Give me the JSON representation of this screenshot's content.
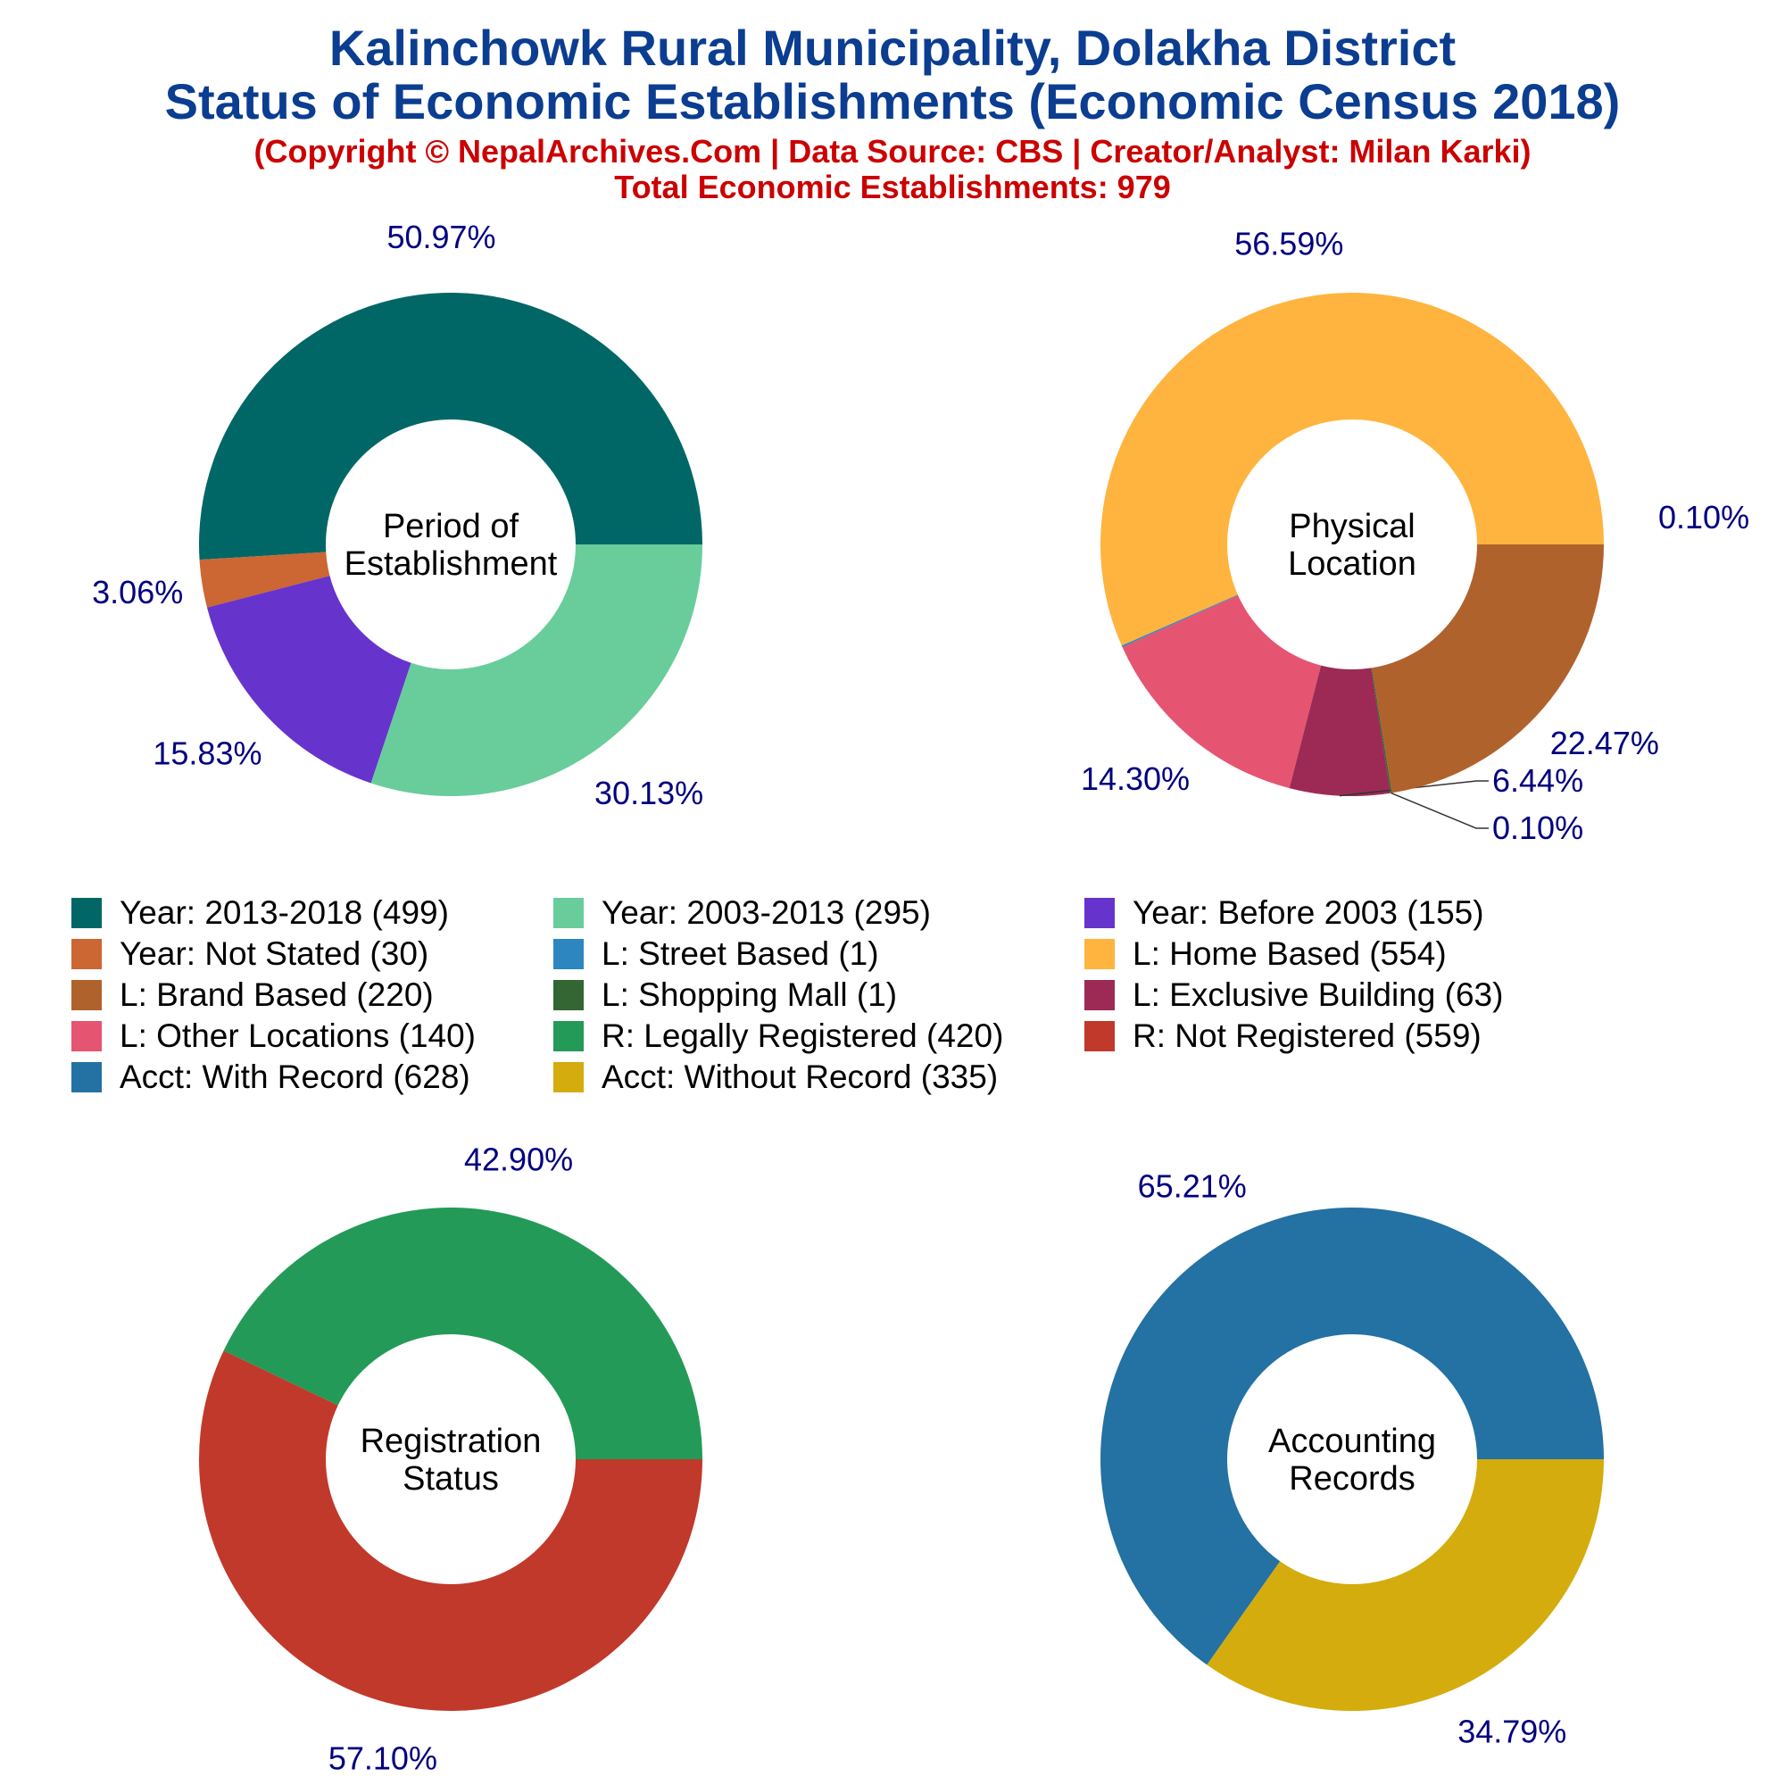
{
  "header": {
    "title_line1": "Kalinchowk Rural Municipality, Dolakha District",
    "title_line2": "Status of Economic Establishments (Economic Census 2018)",
    "copyright": "(Copyright © NepalArchives.Com | Data Source: CBS | Creator/Analyst: Milan Karki)",
    "total": "Total Economic Establishments: 979"
  },
  "legend": [
    {
      "label": "Year: 2013-2018 (499)",
      "color": "#016766"
    },
    {
      "label": "Year: 2003-2013 (295)",
      "color": "#68cd9a"
    },
    {
      "label": "Year: Before 2003 (155)",
      "color": "#6733cd"
    },
    {
      "label": "Year: Not Stated (30)",
      "color": "#cc6633"
    },
    {
      "label": "L: Street Based (1)",
      "color": "#2e86c1"
    },
    {
      "label": "L: Home Based (554)",
      "color": "#ffb43f"
    },
    {
      "label": "L: Brand Based (220)",
      "color": "#b0622d"
    },
    {
      "label": "L: Shopping Mall (1)",
      "color": "#336633"
    },
    {
      "label": "L: Exclusive Building (63)",
      "color": "#9c2a55"
    },
    {
      "label": "L: Other Locations (140)",
      "color": "#e55571"
    },
    {
      "label": "R: Legally Registered (420)",
      "color": "#239a58"
    },
    {
      "label": "R: Not Registered (559)",
      "color": "#c0392b"
    },
    {
      "label": "Acct: With Record (628)",
      "color": "#2471a3"
    },
    {
      "label": "Acct: Without Record (335)",
      "color": "#d4ac0d"
    }
  ],
  "chart_data": [
    {
      "type": "pie",
      "center_label": [
        "Period of",
        "Establishment"
      ],
      "slices": [
        {
          "label": "Year: 2013-2018",
          "value": 499,
          "pct_text": "50.97%",
          "color": "#016766"
        },
        {
          "label": "Year: Not Stated",
          "value": 30,
          "pct_text": "3.06%",
          "color": "#cc6633"
        },
        {
          "label": "Year: Before 2003",
          "value": 155,
          "pct_text": "15.83%",
          "color": "#6733cd"
        },
        {
          "label": "Year: 2003-2013",
          "value": 295,
          "pct_text": "30.13%",
          "color": "#68cd9a"
        }
      ]
    },
    {
      "type": "pie",
      "center_label": [
        "Physical",
        "Location"
      ],
      "slices": [
        {
          "label": "L: Home Based",
          "value": 554,
          "pct_text": "56.59%",
          "color": "#ffb43f"
        },
        {
          "label": "L: Street Based",
          "value": 1,
          "pct_text": "0.10%",
          "color": "#2e86c1"
        },
        {
          "label": "L: Other Locations",
          "value": 140,
          "pct_text": "14.30%",
          "color": "#e55571"
        },
        {
          "label": "L: Exclusive Building",
          "value": 63,
          "pct_text": "6.44%",
          "color": "#9c2a55"
        },
        {
          "label": "L: Shopping Mall",
          "value": 1,
          "pct_text": "0.10%",
          "color": "#336633"
        },
        {
          "label": "L: Brand Based",
          "value": 220,
          "pct_text": "22.47%",
          "color": "#b0622d"
        }
      ]
    },
    {
      "type": "pie",
      "center_label": [
        "Registration",
        "Status"
      ],
      "slices": [
        {
          "label": "R: Legally Registered",
          "value": 420,
          "pct_text": "42.90%",
          "color": "#239a58"
        },
        {
          "label": "R: Not Registered",
          "value": 559,
          "pct_text": "57.10%",
          "color": "#c0392b"
        }
      ]
    },
    {
      "type": "pie",
      "center_label": [
        "Accounting",
        "Records"
      ],
      "slices": [
        {
          "label": "Acct: With Record",
          "value": 628,
          "pct_text": "65.21%",
          "color": "#2471a3"
        },
        {
          "label": "Acct: Without Record",
          "value": 335,
          "pct_text": "34.79%",
          "color": "#d4ac0d"
        }
      ]
    }
  ]
}
